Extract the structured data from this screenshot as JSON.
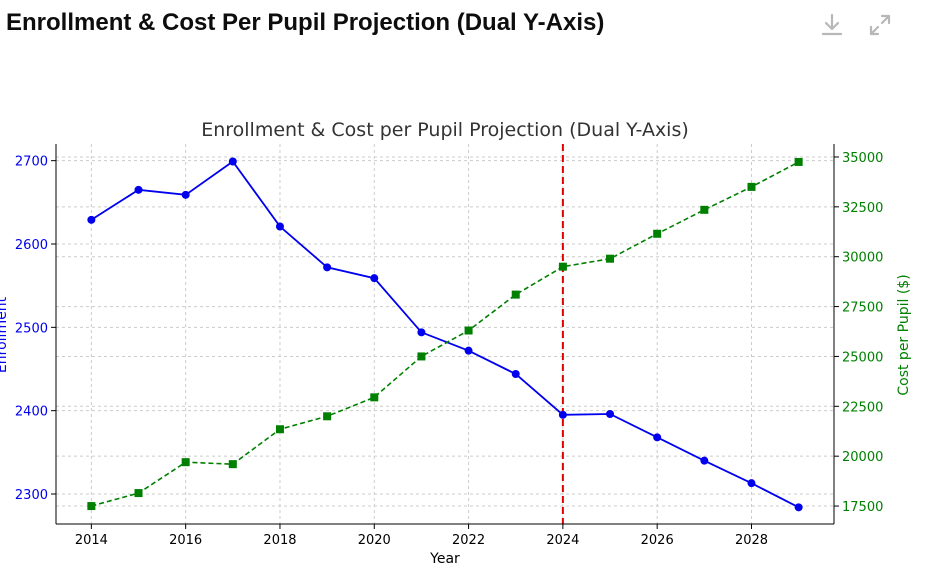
{
  "header": {
    "title": "Enrollment & Cost Per Pupil Projection (Dual Y-Axis)",
    "download_icon": "download-icon",
    "expand_icon": "expand-icon"
  },
  "colors": {
    "enrollment": "#0000ee",
    "cost": "#008000",
    "projection_line": "#e00000",
    "grid": "#cccccc",
    "axis": "#000000",
    "title": "#333333",
    "icon": "#b8b8b8"
  },
  "chart_data": {
    "type": "line",
    "title": "Enrollment & Cost per Pupil Projection (Dual Y-Axis)",
    "xlabel": "Year",
    "ylabel_left": "Enrollment",
    "ylabel_right": "Cost per Pupil ($)",
    "x": [
      2014,
      2015,
      2016,
      2017,
      2018,
      2019,
      2020,
      2021,
      2022,
      2023,
      2024,
      2025,
      2026,
      2027,
      2028,
      2029
    ],
    "xlim": [
      2013.25,
      2029.75
    ],
    "x_ticks": [
      2014,
      2016,
      2018,
      2020,
      2022,
      2024,
      2026,
      2028
    ],
    "ylim_left": [
      2264,
      2720
    ],
    "y_ticks_left": [
      2300,
      2400,
      2500,
      2600,
      2700
    ],
    "ylim_right": [
      16600,
      35650
    ],
    "y_ticks_right": [
      17500,
      20000,
      22500,
      25000,
      27500,
      30000,
      32500,
      35000
    ],
    "projection_start": 2024,
    "grid": true,
    "series": [
      {
        "name": "Enrollment",
        "axis": "left",
        "style": "solid",
        "values": [
          2629,
          2665,
          2659,
          2699,
          2621,
          2572,
          2559,
          2494,
          2472,
          2444,
          2395,
          2396,
          2368,
          2340,
          2313,
          2284
        ]
      },
      {
        "name": "Cost per Pupil ($)",
        "axis": "right",
        "style": "dashed",
        "values": [
          17500,
          18150,
          19700,
          19600,
          21350,
          22000,
          22950,
          25000,
          26300,
          28100,
          29500,
          29900,
          31150,
          32350,
          33500,
          34750
        ]
      }
    ]
  }
}
